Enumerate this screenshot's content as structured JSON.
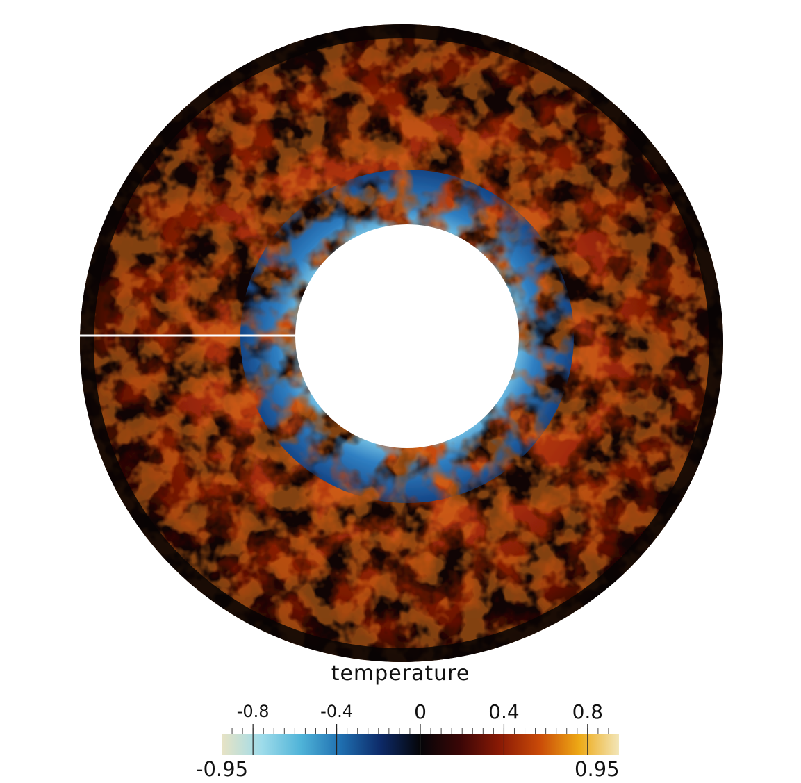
{
  "colorbar": {
    "title": "temperature",
    "min_label": "-0.95",
    "max_label": "0.95",
    "range": [
      -0.95,
      0.95
    ],
    "ticks": [
      {
        "value": -0.8,
        "label": "-0.8"
      },
      {
        "value": -0.4,
        "label": "-0.4"
      },
      {
        "value": 0,
        "label": "0"
      },
      {
        "value": 0.4,
        "label": "0.4"
      },
      {
        "value": 0.8,
        "label": "0.8"
      }
    ],
    "colormap": [
      "#e8e3c4",
      "#9fdcea",
      "#4fb3d8",
      "#1f6fb0",
      "#0d2a68",
      "#050508",
      "#3a0606",
      "#8a1a05",
      "#c94a08",
      "#eea915",
      "#f2e6b9"
    ]
  }
}
